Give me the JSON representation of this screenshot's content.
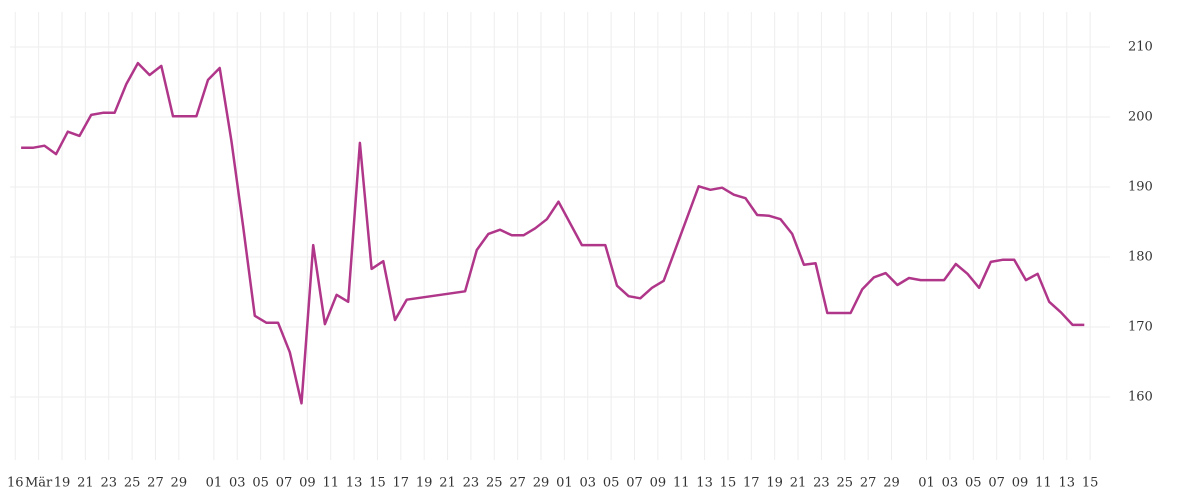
{
  "chart_data": {
    "type": "line",
    "xlim": [
      -1.45,
      92.7
    ],
    "ylim": [
      151,
      215
    ],
    "yticks": [
      160,
      170,
      180,
      190,
      200,
      210
    ],
    "xticks": [
      {
        "value": -1,
        "label": "16"
      },
      {
        "value": 1,
        "label": "Mär"
      },
      {
        "value": 3,
        "label": "19"
      },
      {
        "value": 5,
        "label": "21"
      },
      {
        "value": 7,
        "label": "23"
      },
      {
        "value": 9,
        "label": "25"
      },
      {
        "value": 11,
        "label": "27"
      },
      {
        "value": 13,
        "label": "29"
      },
      {
        "value": 16,
        "label": "01"
      },
      {
        "value": 18,
        "label": "03"
      },
      {
        "value": 20,
        "label": "05"
      },
      {
        "value": 22,
        "label": "07"
      },
      {
        "value": 24,
        "label": "09"
      },
      {
        "value": 26,
        "label": "11"
      },
      {
        "value": 28,
        "label": "13"
      },
      {
        "value": 30,
        "label": "15"
      },
      {
        "value": 32,
        "label": "17"
      },
      {
        "value": 34,
        "label": "19"
      },
      {
        "value": 36,
        "label": "21"
      },
      {
        "value": 38,
        "label": "23"
      },
      {
        "value": 40,
        "label": "25"
      },
      {
        "value": 42,
        "label": "27"
      },
      {
        "value": 44,
        "label": "29"
      },
      {
        "value": 46,
        "label": "01"
      },
      {
        "value": 48,
        "label": "03"
      },
      {
        "value": 50,
        "label": "05"
      },
      {
        "value": 52,
        "label": "07"
      },
      {
        "value": 54,
        "label": "09"
      },
      {
        "value": 56,
        "label": "11"
      },
      {
        "value": 58,
        "label": "13"
      },
      {
        "value": 60,
        "label": "15"
      },
      {
        "value": 62,
        "label": "17"
      },
      {
        "value": 64,
        "label": "19"
      },
      {
        "value": 66,
        "label": "21"
      },
      {
        "value": 68,
        "label": "23"
      },
      {
        "value": 70,
        "label": "25"
      },
      {
        "value": 72,
        "label": "27"
      },
      {
        "value": 74,
        "label": "29"
      },
      {
        "value": 77,
        "label": "01"
      },
      {
        "value": 79,
        "label": "03"
      },
      {
        "value": 81,
        "label": "05"
      },
      {
        "value": 83,
        "label": "07"
      },
      {
        "value": 85,
        "label": "09"
      },
      {
        "value": 87,
        "label": "11"
      },
      {
        "value": 89,
        "label": "13"
      },
      {
        "value": 91,
        "label": "15"
      }
    ],
    "grid": true,
    "series": [
      {
        "color": "#b0368a",
        "x": [
          -0.5,
          0.5,
          1.5,
          2.5,
          3.5,
          4.5,
          5.5,
          6.5,
          7.5,
          8.5,
          9.5,
          10.5,
          11.5,
          12.5,
          14.5,
          15.5,
          16.5,
          17.5,
          18.5,
          19.5,
          20.5,
          21.5,
          22.5,
          23.5,
          24.5,
          25.5,
          26.5,
          27.5,
          28.5,
          29.5,
          30.5,
          31.5,
          32.5,
          37.5,
          38.5,
          39.5,
          40.5,
          41.5,
          42.5,
          43.5,
          44.5,
          45.5,
          47.5,
          49.5,
          50.5,
          51.5,
          52.5,
          53.5,
          54.5,
          57.5,
          58.5,
          59.5,
          60.5,
          61.5,
          62.5,
          63.5,
          64.5,
          65.5,
          66.5,
          67.5,
          68.5,
          70.5,
          71.5,
          72.5,
          73.5,
          74.5,
          75.5,
          76.5,
          78.5,
          79.5,
          80.5,
          81.5,
          82.5,
          83.5,
          84.5,
          85.5,
          86.5,
          87.5,
          88.5,
          89.5,
          90.5
        ],
        "values": [
          195.6,
          195.6,
          195.9,
          194.7,
          197.9,
          197.3,
          200.3,
          200.6,
          200.6,
          204.7,
          207.7,
          206,
          207.3,
          200.1,
          200.1,
          205.3,
          207,
          196.6,
          184.4,
          171.6,
          170.6,
          170.6,
          166.4,
          159.1,
          181.7,
          170.4,
          174.6,
          173.6,
          196.3,
          178.3,
          179.4,
          171,
          173.9,
          175.1,
          181,
          183.3,
          183.9,
          183.1,
          183.1,
          184.1,
          185.4,
          187.9,
          181.7,
          181.7,
          175.9,
          174.4,
          174.1,
          175.6,
          176.6,
          190.1,
          189.6,
          189.9,
          188.9,
          188.4,
          186,
          185.9,
          185.4,
          183.3,
          178.9,
          179.1,
          172,
          172,
          175.4,
          177.1,
          177.7,
          176,
          177,
          176.7,
          176.7,
          179,
          177.6,
          175.6,
          179.3,
          179.6,
          179.6,
          176.7,
          177.6,
          173.6,
          172.1,
          170.3,
          170.3
        ]
      }
    ]
  }
}
